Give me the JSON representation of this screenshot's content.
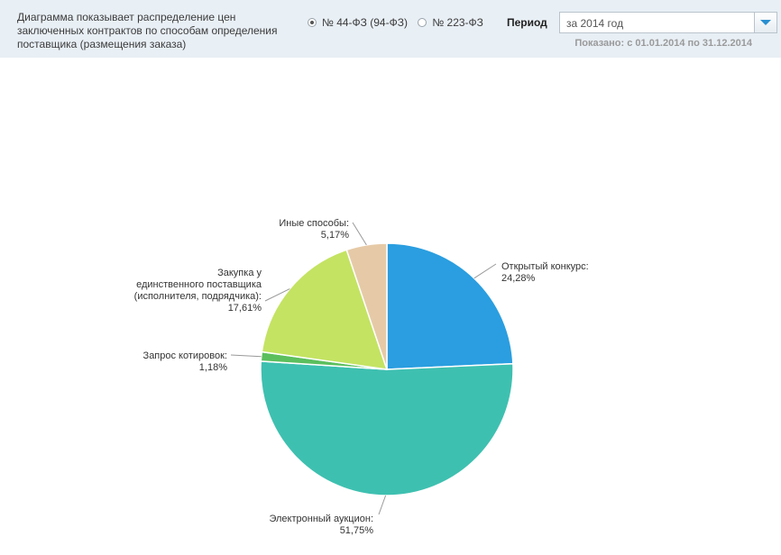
{
  "header": {
    "description": "Диаграмма показывает распределение цен заключенных контрактов по способам определения поставщика (размещения заказа)",
    "law_options": [
      {
        "label": "№ 44-ФЗ (94-ФЗ)",
        "selected": true
      },
      {
        "label": "№ 223-ФЗ",
        "selected": false
      }
    ],
    "period_label": "Период",
    "period_value": "за 2014 год",
    "shown_range": "Показано: с 01.01.2014 по 31.12.2014"
  },
  "chart_data": {
    "type": "pie",
    "slices": [
      {
        "label_lines": [
          "Открытый конкурс:",
          "24,28%"
        ],
        "value": 24.28,
        "color": "#2a9ee0"
      },
      {
        "label_lines": [
          "Электронный аукцион:",
          "51,75%"
        ],
        "value": 51.75,
        "color": "#3ec0b0"
      },
      {
        "label_lines": [
          "Запрос котировок:",
          "1,18%"
        ],
        "value": 1.18,
        "color": "#5bbf5e"
      },
      {
        "label_lines": [
          "Закупка у",
          "единственного поставщика",
          "(исполнителя, подрядчика):",
          "17,61%"
        ],
        "value": 17.61,
        "color": "#c4e362"
      },
      {
        "label_lines": [
          "Иные способы:",
          "5,17%"
        ],
        "value": 5.17,
        "color": "#e6caa7"
      }
    ]
  }
}
